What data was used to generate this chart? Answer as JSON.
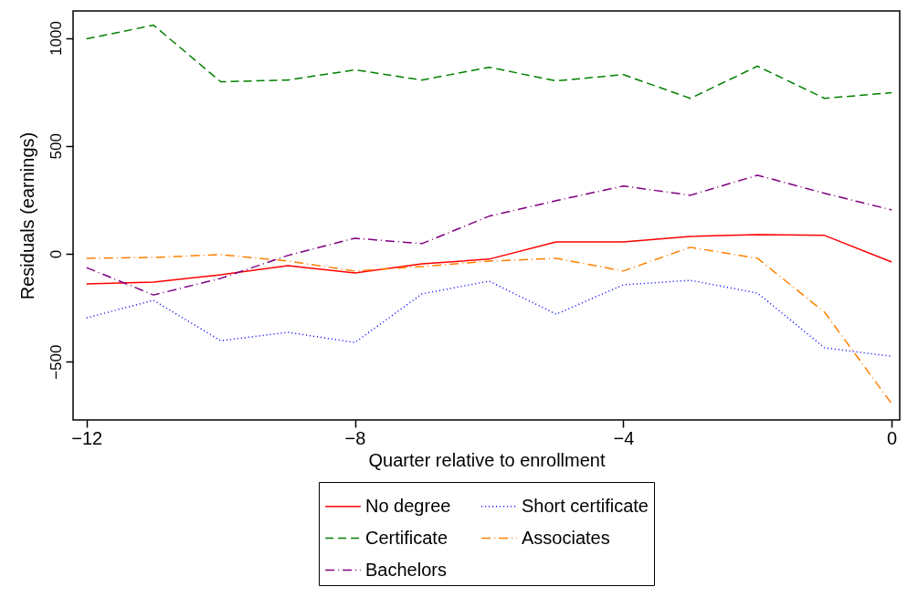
{
  "chart_data": {
    "type": "line",
    "xlabel": "Quarter relative to enrollment",
    "ylabel": "Residuals (earnings)",
    "x": [
      -12,
      -11,
      -10,
      -9,
      -8,
      -7,
      -6,
      -5,
      -4,
      -3,
      -2,
      -1,
      0
    ],
    "xlim": [
      -12.2,
      0.12
    ],
    "xticks": [
      -12,
      -8,
      -4,
      0
    ],
    "ylim": [
      -770,
      1125
    ],
    "yticks": [
      -500,
      0,
      500,
      1000
    ],
    "grid": false,
    "legend": "bottom",
    "series": [
      {
        "name": "No degree",
        "color": "#ff0000",
        "line_style": "solid",
        "values": [
          -140,
          -131,
          -97,
          -55,
          -89,
          -47,
          -25,
          55,
          55,
          80,
          89,
          85,
          -38
        ]
      },
      {
        "name": "Short certificate",
        "color": "#0000ff",
        "line_style": "dotted",
        "values": [
          -297,
          -216,
          -403,
          -364,
          -411,
          -186,
          -127,
          -280,
          -144,
          -123,
          -182,
          -436,
          -475
        ]
      },
      {
        "name": "Certificate",
        "color": "#008000",
        "line_style": "dashed",
        "values": [
          996,
          1059,
          797,
          805,
          852,
          805,
          864,
          801,
          830,
          720,
          869,
          720,
          746
        ]
      },
      {
        "name": "Associates",
        "color": "#ff8000",
        "line_style": "dashdot",
        "values": [
          -21,
          -17,
          -4,
          -34,
          -80,
          -59,
          -34,
          -21,
          -80,
          30,
          -21,
          -271,
          -695
        ]
      },
      {
        "name": "Bachelors",
        "color": "#800080",
        "line_style": "dashdot",
        "values": [
          -64,
          -191,
          -114,
          -8,
          72,
          47,
          174,
          246,
          314,
          271,
          364,
          280,
          203
        ]
      }
    ]
  }
}
